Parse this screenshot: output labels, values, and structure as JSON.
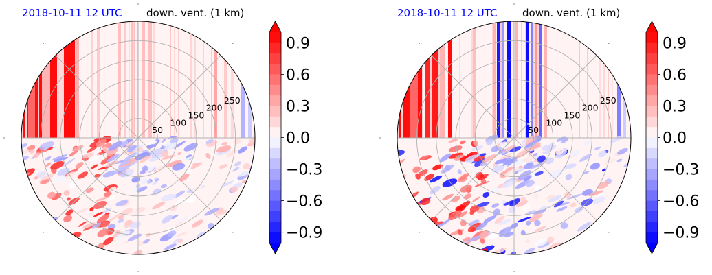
{
  "colors": {
    "date": "#0000ff",
    "positive": "#ff0000",
    "negative": "#0000ff",
    "zero": "#ffffff",
    "grid": "#b0b0b0"
  },
  "chart_data": [
    {
      "type": "heatmap",
      "projection": "polar",
      "date_label": "2018-10-11 12 UTC",
      "title": "down. vent. (1 km)",
      "radial_ticks": [
        "50",
        "100",
        "150",
        "200",
        "250"
      ],
      "radial_tick_values": [
        50,
        100,
        150,
        200,
        250
      ],
      "rlim": [
        0,
        300
      ],
      "grid": true,
      "colorbar": {
        "ticks": [
          "−0.9",
          "−0.6",
          "−0.3",
          "0.0",
          "0.3",
          "0.6",
          "0.9"
        ],
        "tick_values": [
          -0.9,
          -0.6,
          -0.3,
          0.0,
          0.3,
          0.6,
          0.9
        ],
        "range": [
          -1.0,
          1.0
        ],
        "extend": "both",
        "colormap": "bwr"
      }
    },
    {
      "type": "heatmap",
      "projection": "polar",
      "date_label": "2018-10-11 12 UTC",
      "title": "down. vent. (1 km)",
      "radial_ticks": [
        "50",
        "100",
        "150",
        "200",
        "250"
      ],
      "radial_tick_values": [
        50,
        100,
        150,
        200,
        250
      ],
      "rlim": [
        0,
        300
      ],
      "grid": true,
      "colorbar": {
        "ticks": [
          "−0.9",
          "−0.6",
          "−0.3",
          "0.0",
          "0.3",
          "0.6",
          "0.9"
        ],
        "tick_values": [
          -0.9,
          -0.6,
          -0.3,
          0.0,
          0.3,
          0.6,
          0.9
        ],
        "range": [
          -1.0,
          1.0
        ],
        "extend": "both",
        "colormap": "bwr"
      }
    }
  ]
}
